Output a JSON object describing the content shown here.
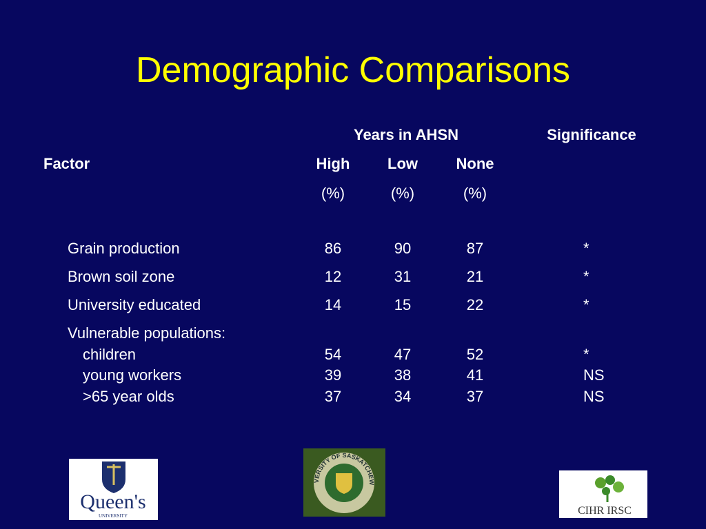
{
  "title": "Demographic Comparisons",
  "table": {
    "group_header": "Years in AHSN",
    "significance_header": "Significance",
    "factor_header": "Factor",
    "columns": [
      "High",
      "Low",
      "None"
    ],
    "units": [
      "(%)",
      "(%)",
      "(%)"
    ],
    "rows": [
      {
        "factor": "Grain production",
        "values": [
          86,
          90,
          87
        ],
        "significance": "*"
      },
      {
        "factor": "Brown soil zone",
        "values": [
          12,
          31,
          21
        ],
        "significance": "*"
      },
      {
        "factor": "University educated",
        "values": [
          14,
          15,
          22
        ],
        "significance": "*"
      }
    ],
    "section": {
      "label": "Vulnerable populations:",
      "rows": [
        {
          "factor": "children",
          "values": [
            54,
            47,
            52
          ],
          "significance": "*"
        },
        {
          "factor": "young workers",
          "values": [
            39,
            38,
            41
          ],
          "significance": "NS"
        },
        {
          "factor": ">65 year olds",
          "values": [
            37,
            34,
            37
          ],
          "significance": "NS"
        }
      ]
    }
  },
  "logos": {
    "queens": "Queen's",
    "queens_sub": "UNIVERSITY",
    "saskatchewan": "UNIVERSITY OF SASKATCHEWAN",
    "cihr": "CIHR IRSC"
  }
}
